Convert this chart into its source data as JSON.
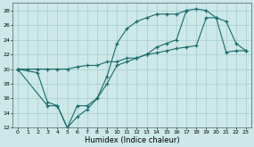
{
  "xlabel": "Humidex (Indice chaleur)",
  "bg_color": "#cce8e8",
  "line_color": "#1a6b6b",
  "grid_color": "#aacccc",
  "xlim": [
    -0.5,
    23.5
  ],
  "ylim": [
    12,
    29
  ],
  "yticks": [
    12,
    14,
    16,
    18,
    20,
    22,
    24,
    26,
    28
  ],
  "xticks": [
    0,
    1,
    2,
    3,
    4,
    5,
    6,
    7,
    8,
    9,
    10,
    11,
    12,
    13,
    14,
    15,
    16,
    17,
    18,
    19,
    20,
    21,
    22,
    23
  ],
  "line1_x": [
    0,
    1,
    2,
    3,
    4,
    5,
    6,
    7,
    8,
    9,
    10,
    11,
    12,
    13,
    14,
    15,
    16,
    17,
    18,
    19,
    20,
    21,
    22,
    23
  ],
  "line1_y": [
    20,
    20,
    20,
    20,
    20,
    20,
    20.3,
    20.5,
    20.5,
    21,
    21,
    21.5,
    21.5,
    22,
    22.2,
    22.5,
    22.8,
    23,
    23.2,
    27,
    27,
    22.3,
    22.5,
    22.5
  ],
  "line2_x": [
    0,
    2,
    3,
    4,
    5,
    6,
    7,
    8,
    9,
    10,
    11,
    12,
    13,
    14,
    15,
    16,
    17
  ],
  "line2_y": [
    20,
    19.5,
    15.5,
    15,
    12,
    15,
    15,
    16,
    19,
    23.5,
    25.5,
    26.5,
    27,
    27.5,
    27.5,
    27.5,
    28
  ],
  "line3_x": [
    0,
    3,
    4,
    5,
    6,
    7,
    8,
    9,
    10,
    11,
    12,
    13,
    14,
    15,
    16,
    17,
    18,
    19,
    20,
    21,
    22,
    23
  ],
  "line3_y": [
    20,
    15,
    15,
    12,
    13.5,
    14.5,
    16,
    18,
    20.5,
    21,
    21.5,
    22,
    23,
    23.5,
    24,
    28,
    28.2,
    28,
    27,
    26.5,
    23.5,
    22.5
  ]
}
